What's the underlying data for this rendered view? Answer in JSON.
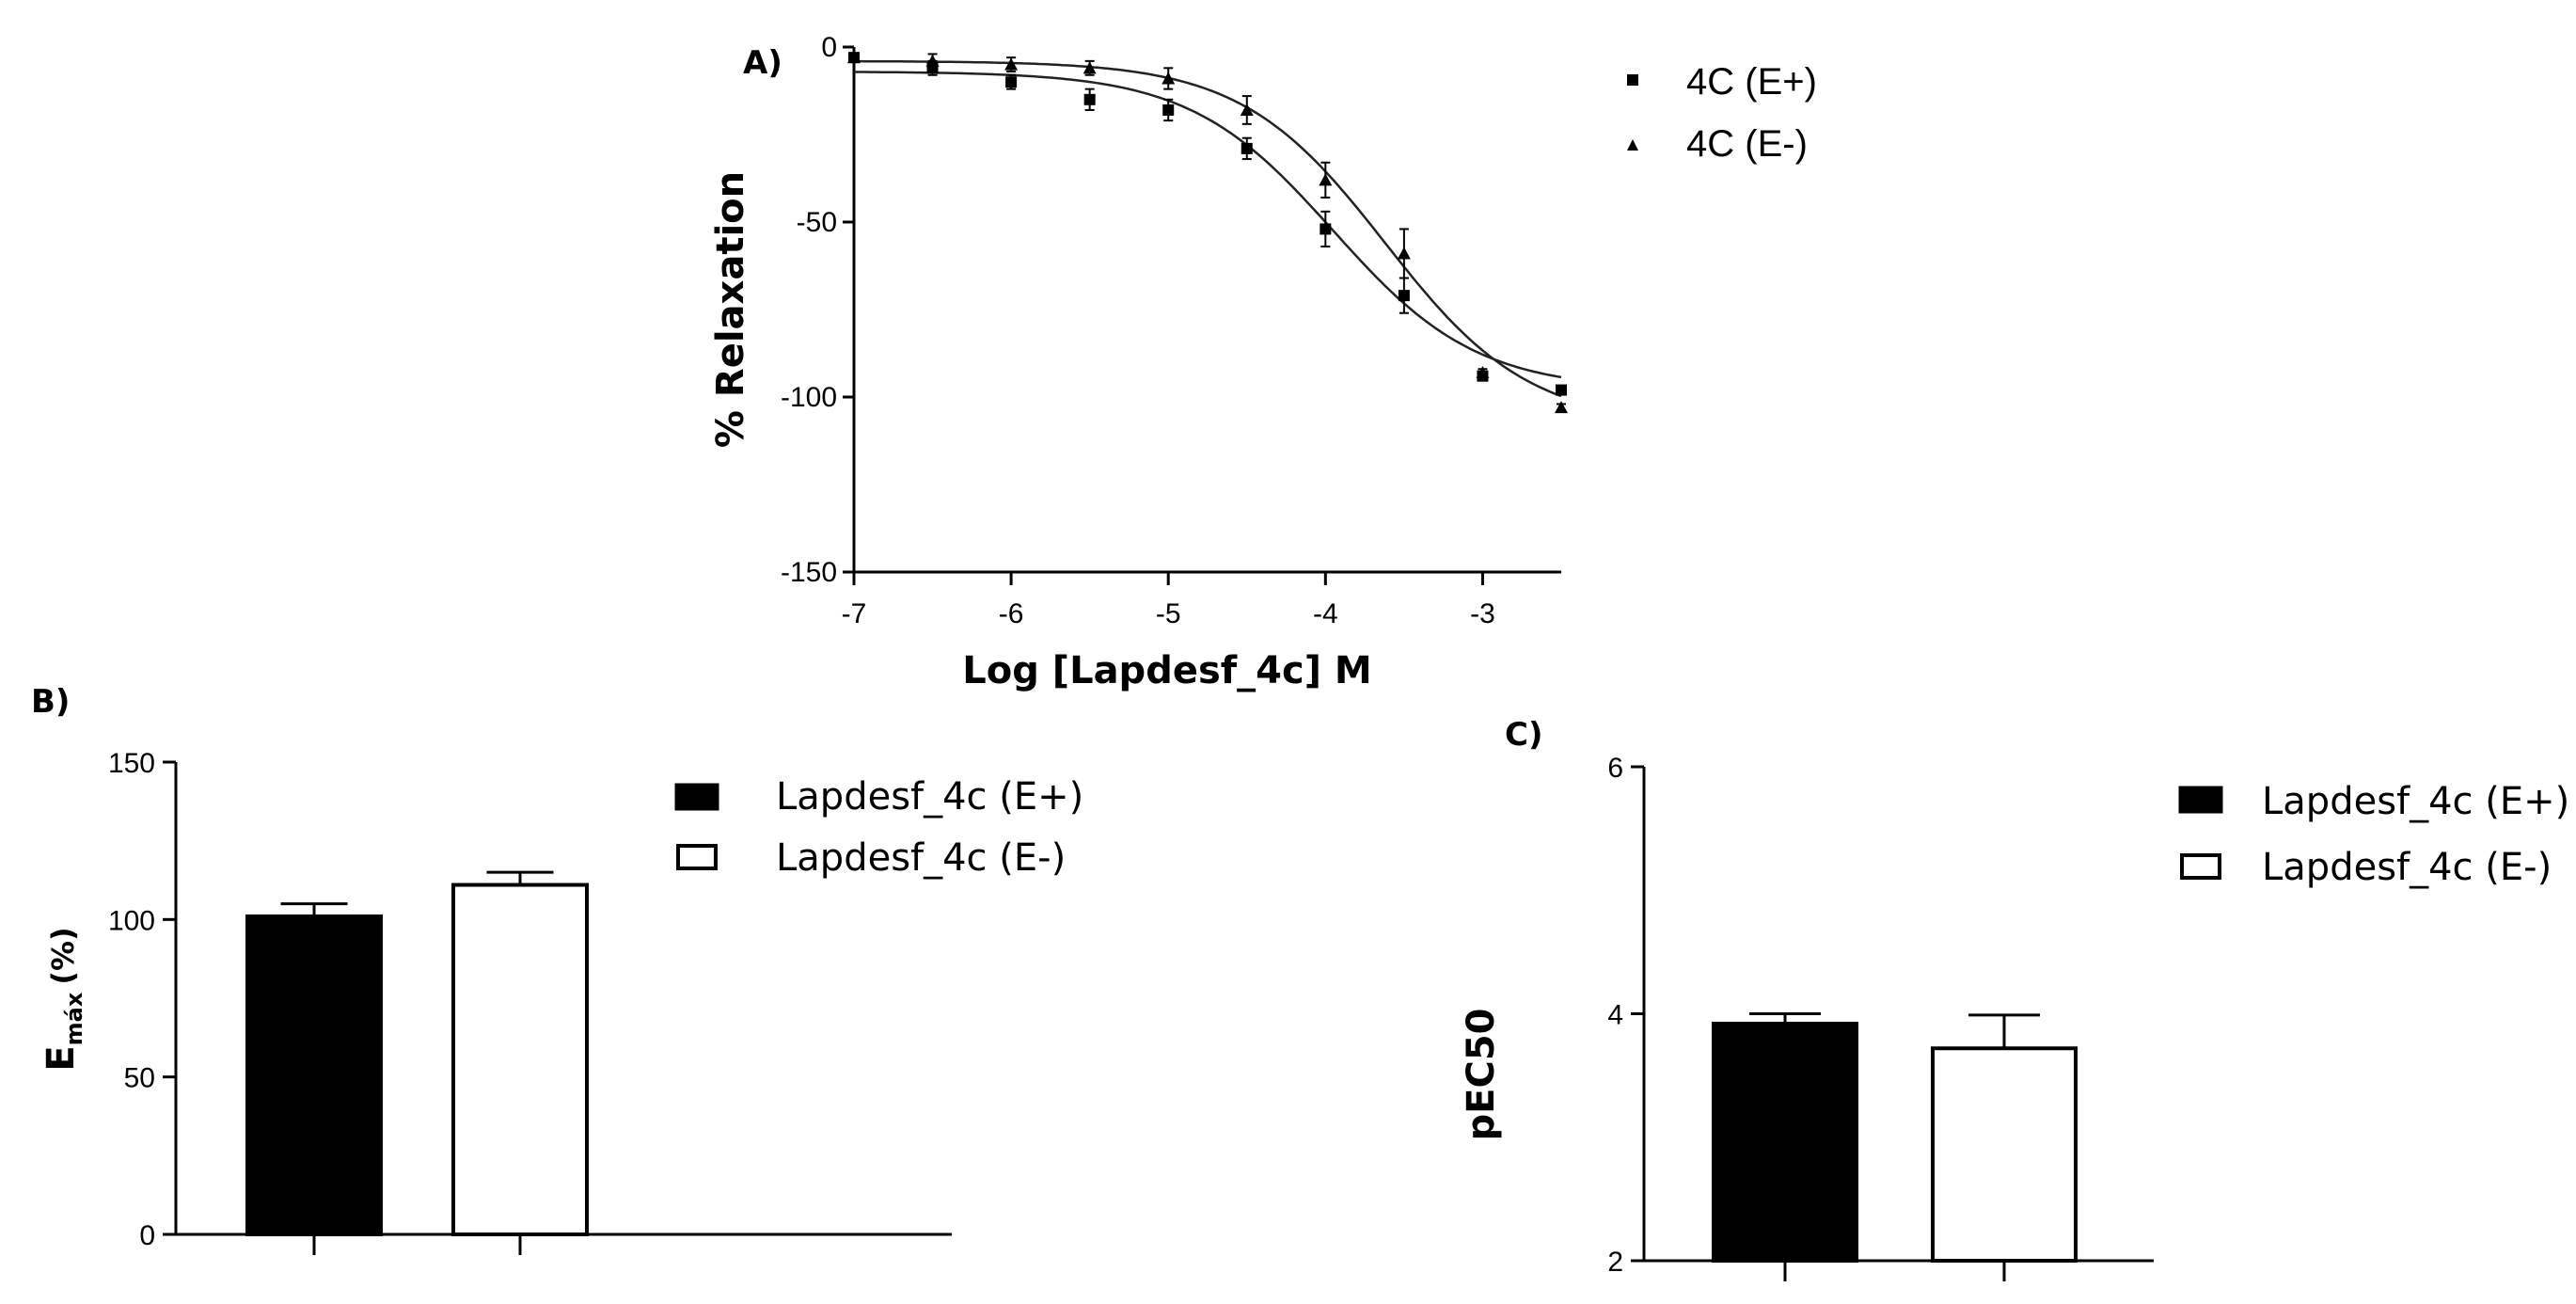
{
  "chart_data": [
    {
      "id": "A",
      "type": "line",
      "panel_label": "A)",
      "xlabel": "Log [Lapdesf_4c] M",
      "ylabel": "% Relaxation",
      "xlim": [
        -7,
        -2.5
      ],
      "ylim": [
        -150,
        0
      ],
      "x_ticks": [
        -7,
        -6,
        -5,
        -4,
        -3
      ],
      "x_tick_labels": [
        "-7",
        "-6",
        "-5",
        "-4",
        "-3"
      ],
      "y_ticks": [
        0,
        -50,
        -100,
        -150
      ],
      "y_tick_labels": [
        "0",
        "-50",
        "-100",
        "-150"
      ],
      "legend_position": "top-right",
      "x": [
        -7,
        -6.5,
        -6,
        -5.5,
        -5,
        -4.5,
        -4,
        -3.5,
        -3,
        -2.5
      ],
      "series": [
        {
          "name": "4C (E+)",
          "marker": "square",
          "values": [
            -3,
            -6,
            -10,
            -15,
            -18,
            -29,
            -52,
            -71,
            -94,
            -98
          ],
          "errors": [
            1,
            2,
            2,
            3,
            3,
            3,
            5,
            5,
            1,
            1
          ],
          "fit": {
            "bottom": -98,
            "top": -7,
            "logEC50": -3.95,
            "hill": 0.95
          }
        },
        {
          "name": "4C (E-)",
          "marker": "triangle",
          "values": [
            -3,
            -4,
            -5,
            -6,
            -9,
            -18,
            -38,
            -59,
            -93,
            -103
          ],
          "errors": [
            1,
            2,
            2,
            2,
            3,
            4,
            5,
            7,
            1,
            1
          ],
          "fit": {
            "bottom": -108,
            "top": -4,
            "logEC50": -3.62,
            "hill": 0.95
          }
        }
      ]
    },
    {
      "id": "B",
      "type": "bar",
      "panel_label": "B)",
      "ylabel_main": "E",
      "ylabel_sub": "máx",
      "ylabel_suffix": "(%)",
      "ylim": [
        0,
        150
      ],
      "y_ticks": [
        0,
        50,
        100,
        150
      ],
      "y_tick_labels": [
        "0",
        "50",
        "100",
        "150"
      ],
      "legend_position": "right",
      "categories": [
        "Lapdesf_4c (E+)",
        "Lapdesf_4c (E-)"
      ],
      "values": [
        101,
        111
      ],
      "errors": [
        4,
        4
      ],
      "fills": [
        "#000000",
        "#ffffff"
      ]
    },
    {
      "id": "C",
      "type": "bar",
      "panel_label": "C)",
      "ylabel": "pEC50",
      "ylim": [
        2,
        6
      ],
      "y_ticks": [
        2,
        4,
        6
      ],
      "y_tick_labels": [
        "2",
        "4",
        "6"
      ],
      "legend_position": "top-right",
      "categories": [
        "Lapdesf_4c (E+)",
        "Lapdesf_4c (E-)"
      ],
      "values": [
        3.92,
        3.72
      ],
      "errors": [
        0.08,
        0.27
      ],
      "fills": [
        "#000000",
        "#ffffff"
      ]
    }
  ]
}
